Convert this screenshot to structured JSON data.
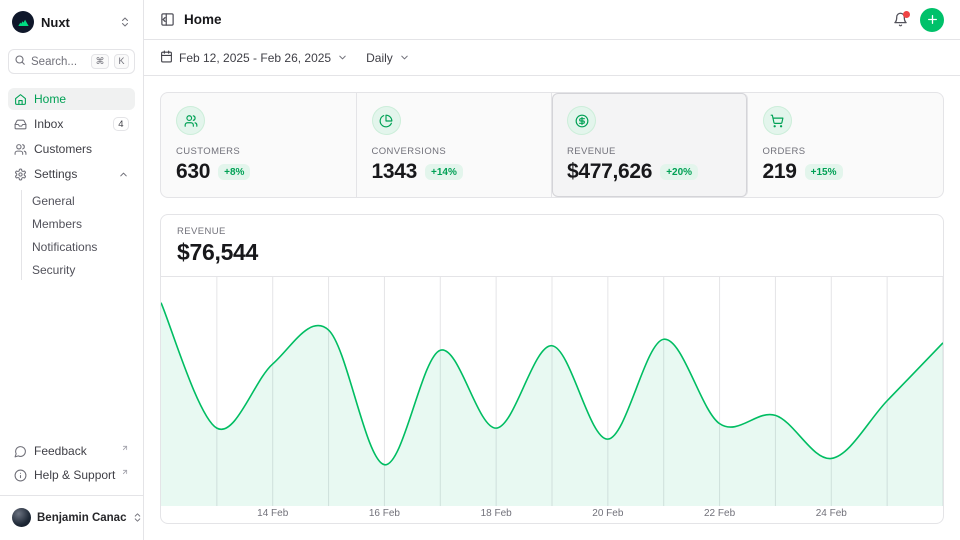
{
  "app": {
    "brand": "Nuxt"
  },
  "colors": {
    "primary": "#00C16A",
    "primary_text": "#00a155",
    "badge_bg": "#e3f5ec",
    "notification_dot": "#ef4444",
    "border": "#e4e4e7",
    "muted_text": "#71717a"
  },
  "sidebar": {
    "search": {
      "placeholder": "Search...",
      "kbd": [
        "⌘",
        "K"
      ]
    },
    "items": [
      {
        "label": "Home",
        "active": true
      },
      {
        "label": "Inbox",
        "badge": "4"
      },
      {
        "label": "Customers"
      },
      {
        "label": "Settings",
        "expanded": true
      }
    ],
    "settings_children": [
      "General",
      "Members",
      "Notifications",
      "Security"
    ],
    "footer_items": [
      "Feedback",
      "Help & Support"
    ],
    "user": {
      "name": "Benjamin Canac"
    }
  },
  "header": {
    "title": "Home"
  },
  "toolbar": {
    "date_range": "Feb 12, 2025 - Feb 26, 2025",
    "granularity": "Daily"
  },
  "stats": [
    {
      "label": "CUSTOMERS",
      "value": "630",
      "delta": "+8%",
      "icon": "users-icon"
    },
    {
      "label": "CONVERSIONS",
      "value": "1343",
      "delta": "+14%",
      "icon": "pie-chart-icon"
    },
    {
      "label": "REVENUE",
      "value": "$477,626",
      "delta": "+20%",
      "icon": "dollar-circle-icon",
      "selected": true
    },
    {
      "label": "ORDERS",
      "value": "219",
      "delta": "+15%",
      "icon": "shopping-cart-icon"
    }
  ],
  "chart_card": {
    "label": "REVENUE",
    "value": "$76,544"
  },
  "chart_data": {
    "type": "area",
    "title": "Revenue",
    "x": [
      "12 Feb",
      "13 Feb",
      "14 Feb",
      "15 Feb",
      "16 Feb",
      "17 Feb",
      "18 Feb",
      "19 Feb",
      "20 Feb",
      "21 Feb",
      "22 Feb",
      "23 Feb",
      "24 Feb",
      "25 Feb",
      "26 Feb"
    ],
    "values": [
      90600,
      34700,
      63300,
      78400,
      18400,
      69400,
      34700,
      71400,
      29800,
      74300,
      36700,
      40400,
      21200,
      46900,
      72700
    ],
    "tick_indices": [
      2,
      4,
      6,
      8,
      10,
      12
    ],
    "tick_labels": [
      "14 Feb",
      "16 Feb",
      "18 Feb",
      "20 Feb",
      "22 Feb",
      "24 Feb"
    ],
    "xlabel": "",
    "ylabel": "Revenue ($)",
    "ylim": [
      0,
      100000
    ],
    "grid": "vertical-only",
    "legend": "none",
    "line_color": "#00bd62",
    "smooth": true
  }
}
